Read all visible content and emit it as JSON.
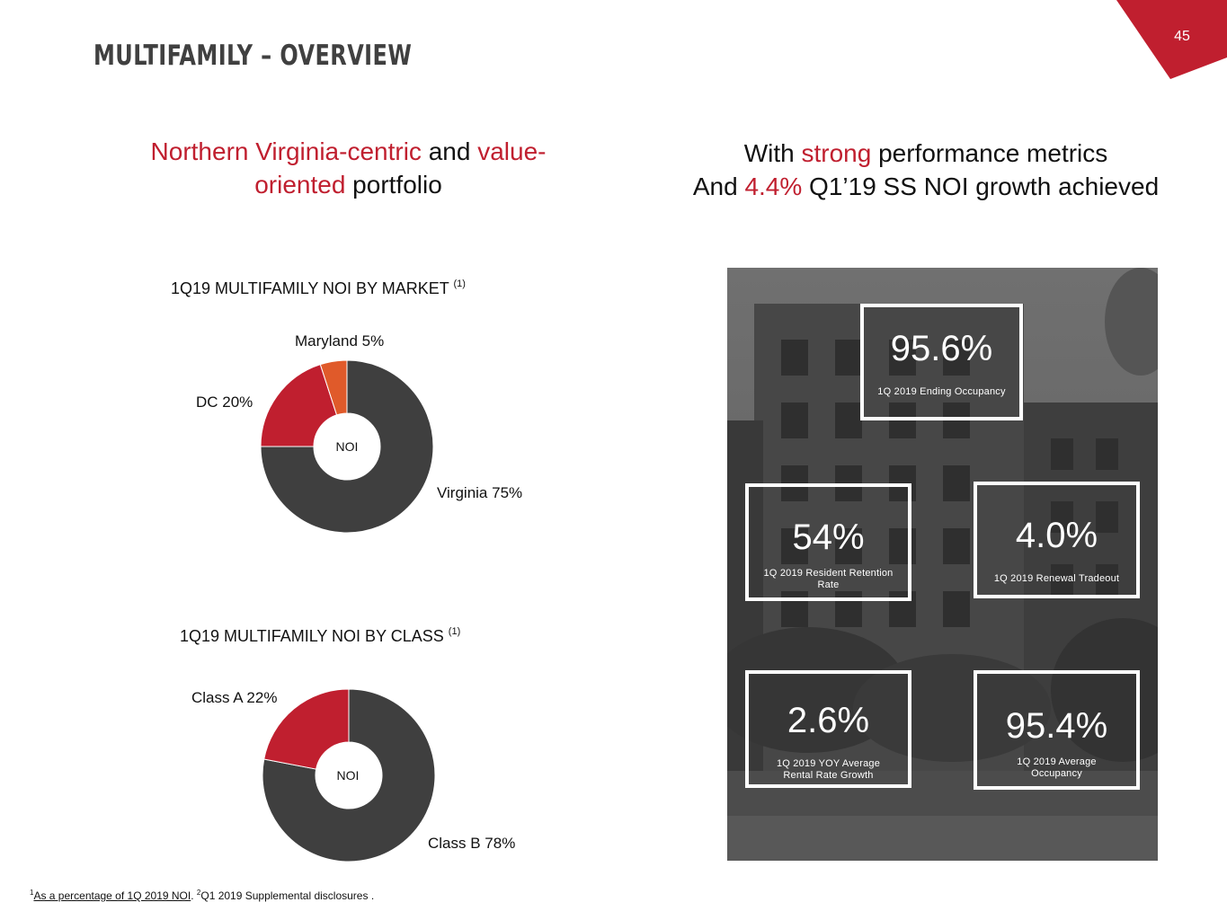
{
  "page_number": "45",
  "title": "MULTIFAMILY – OVERVIEW",
  "headline_left": {
    "part1": "Northern Virginia-centric",
    "part2": " and ",
    "part3": "value-",
    "part4": "oriented",
    "part5": " portfolio"
  },
  "headline_right": {
    "part1": "With ",
    "part2": "strong",
    "part3": " performance metrics",
    "part4": "And ",
    "part5": "4.4%",
    "part6": " Q1’19 SS NOI growth achieved"
  },
  "colors": {
    "accent": "#c01f2f",
    "dark": "#3f3f3f",
    "orange": "#e05a2a"
  },
  "chart_data": [
    {
      "type": "pie",
      "title": "1Q19 MULTIFAMILY NOI BY MARKET",
      "title_note": "(1)",
      "center_label": "NOI",
      "categories": [
        "Virginia",
        "DC",
        "Maryland"
      ],
      "values": [
        75,
        20,
        5
      ],
      "labels": [
        "Virginia 75%",
        "DC 20%",
        "Maryland 5%"
      ],
      "colors": [
        "#3f3f3f",
        "#c01f2f",
        "#e05a2a"
      ]
    },
    {
      "type": "pie",
      "title": "1Q19 MULTIFAMILY NOI BY CLASS",
      "title_note": "(1)",
      "center_label": "NOI",
      "categories": [
        "Class B",
        "Class A"
      ],
      "values": [
        78,
        22
      ],
      "labels": [
        "Class B 78%",
        "Class A 22%"
      ],
      "colors": [
        "#3f3f3f",
        "#c01f2f"
      ]
    }
  ],
  "metrics": {
    "ending_occupancy": {
      "value": "95.6%",
      "label": "1Q 2019 Ending Occupancy"
    },
    "retention": {
      "value": "54%",
      "label_line1": "1Q 2019 Resident Retention",
      "label_line2": "Rate"
    },
    "renewal": {
      "value": "4.0%",
      "label": "1Q 2019 Renewal Tradeout"
    },
    "rent_growth": {
      "value": "2.6%",
      "label_line1": "1Q 2019 YOY Average",
      "label_line2": "Rental Rate Growth"
    },
    "avg_occupancy": {
      "value": "95.4%",
      "label_line1": "1Q 2019 Average",
      "label_line2": "Occupancy"
    }
  },
  "footnote": {
    "sup1": "1",
    "link": "As a percentage of 1Q 2019 NOI",
    "sep": ". ",
    "sup2": "2",
    "text": "Q1 2019 Supplemental disclosures",
    "end": " ."
  }
}
